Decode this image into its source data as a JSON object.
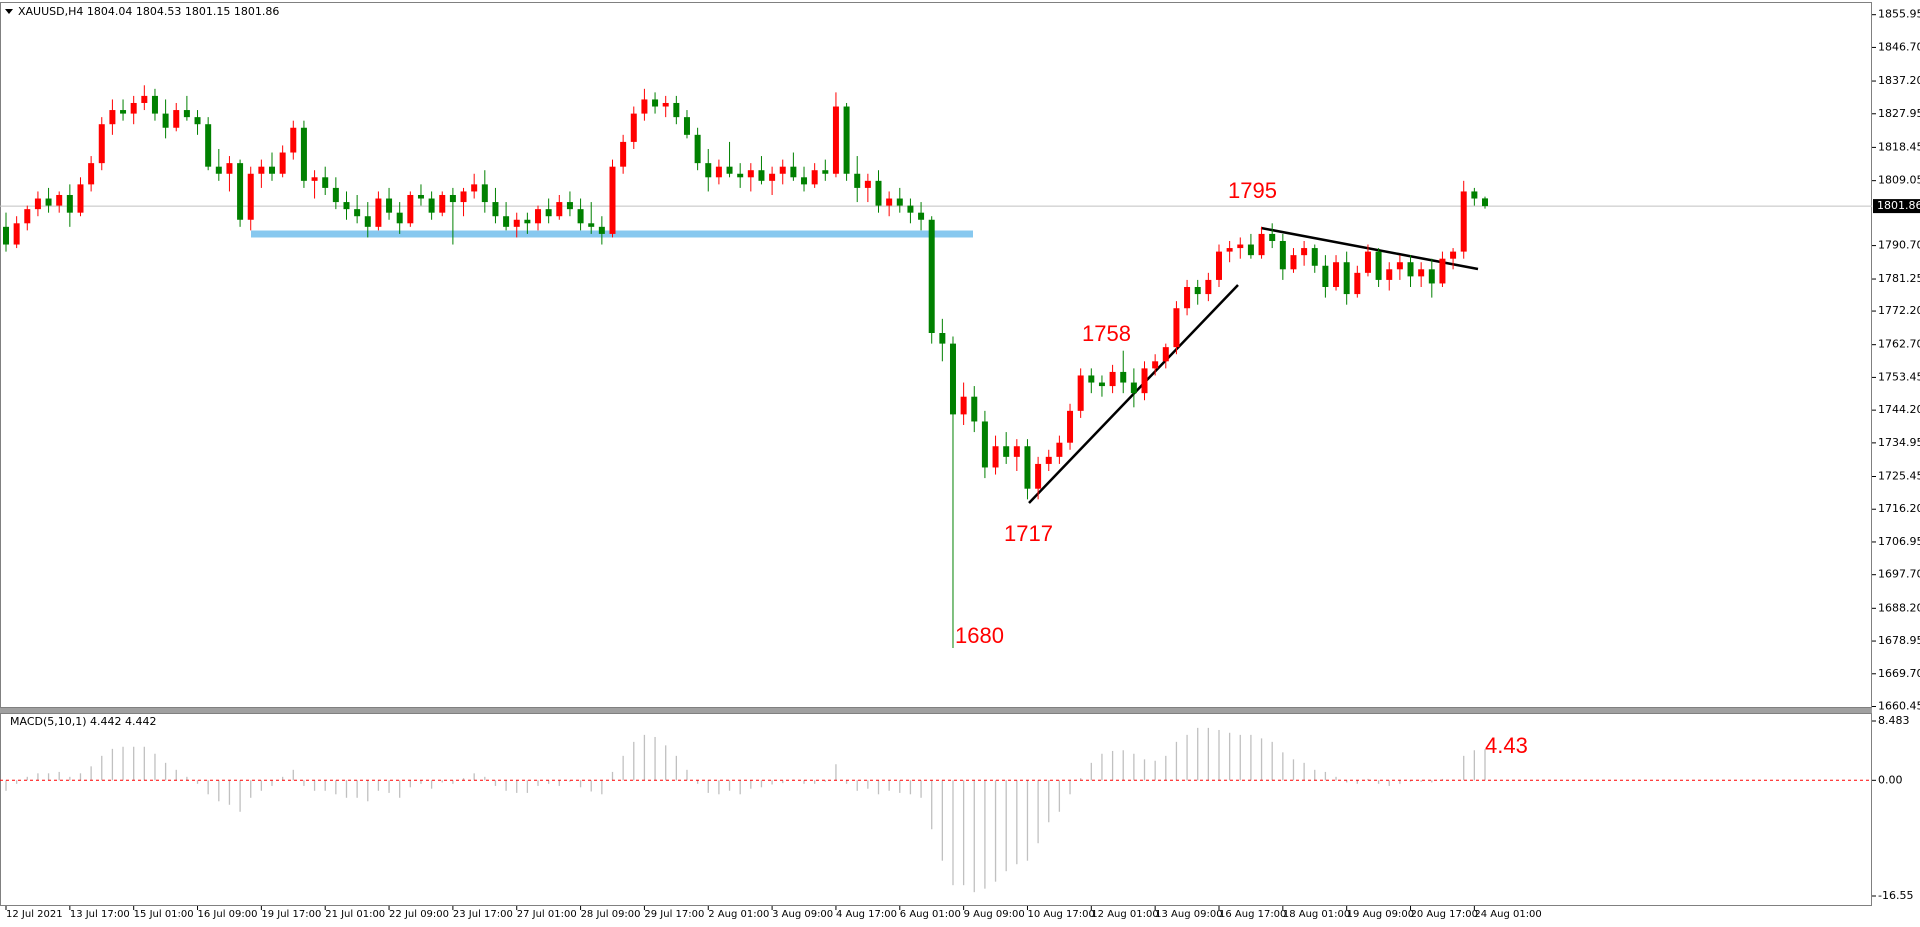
{
  "chart_data": [
    {
      "type": "candlestick",
      "title": "XAUUSD,H4  1804.04 1804.53 1801.15 1801.86",
      "bull_color": "#ff0000",
      "bear_color": "#008000",
      "ylim": [
        1660.03,
        1858.97
      ],
      "yticks": [
        {
          "value": 1855.95,
          "label": "1855.95"
        },
        {
          "value": 1846.7,
          "label": "1846.70"
        },
        {
          "value": 1837.2,
          "label": "1837.20"
        },
        {
          "value": 1827.95,
          "label": "1827.95"
        },
        {
          "value": 1818.45,
          "label": "1818.45"
        },
        {
          "value": 1809.05,
          "label": "1809.05"
        },
        {
          "value": 1790.7,
          "label": "1790.70"
        },
        {
          "value": 1781.25,
          "label": "1781.25"
        },
        {
          "value": 1772.2,
          "label": "1772.20"
        },
        {
          "value": 1762.7,
          "label": "1762.70"
        },
        {
          "value": 1753.45,
          "label": "1753.45"
        },
        {
          "value": 1744.2,
          "label": "1744.20"
        },
        {
          "value": 1734.95,
          "label": "1734.95"
        },
        {
          "value": 1725.45,
          "label": "1725.45"
        },
        {
          "value": 1716.2,
          "label": "1716.20"
        },
        {
          "value": 1706.95,
          "label": "1706.95"
        },
        {
          "value": 1697.7,
          "label": "1697.70"
        },
        {
          "value": 1688.2,
          "label": "1688.20"
        },
        {
          "value": 1678.95,
          "label": "1678.95"
        },
        {
          "value": 1669.7,
          "label": "1669.70"
        },
        {
          "value": 1660.45,
          "label": "1660.45"
        }
      ],
      "current_price": 1801.86,
      "annotations": [
        "1795",
        "1758",
        "1717",
        "1680"
      ],
      "categories": [
        "12 Jul 2021",
        null,
        null,
        null,
        null,
        null,
        "13 Jul 17:00",
        null,
        null,
        null,
        null,
        null,
        "15 Jul 01:00",
        null,
        null,
        null,
        null,
        null,
        "16 Jul 09:00",
        null,
        null,
        null,
        null,
        null,
        "19 Jul 17:00",
        null,
        null,
        null,
        null,
        null,
        "21 Jul 01:00",
        null,
        null,
        null,
        null,
        null,
        "22 Jul 09:00",
        null,
        null,
        null,
        null,
        null,
        "23 Jul 17:00",
        null,
        null,
        null,
        null,
        null,
        "27 Jul 01:00",
        null,
        null,
        null,
        null,
        null,
        "28 Jul 09:00",
        null,
        null,
        null,
        null,
        null,
        "29 Jul 17:00",
        null,
        null,
        null,
        null,
        null,
        "2 Aug 01:00",
        null,
        null,
        null,
        null,
        null,
        "3 Aug 09:00",
        null,
        null,
        null,
        null,
        null,
        "4 Aug 17:00",
        null,
        null,
        null,
        null,
        null,
        "6 Aug 01:00",
        null,
        null,
        null,
        null,
        null,
        "9 Aug 09:00",
        null,
        null,
        null,
        null,
        null,
        "10 Aug 17:00",
        null,
        null,
        null,
        null,
        null,
        "12 Aug 01:00",
        null,
        null,
        null,
        null,
        null,
        "13 Aug 09:00",
        null,
        null,
        null,
        null,
        null,
        "16 Aug 17:00",
        null,
        null,
        null,
        null,
        null,
        "18 Aug 01:00",
        null,
        null,
        null,
        null,
        null,
        "19 Aug 09:00",
        null,
        null,
        null,
        null,
        null,
        "20 Aug 17:00",
        null,
        null,
        null,
        null,
        null,
        "24 Aug 01:00",
        null
      ],
      "candles": [
        [
          1796,
          1800,
          1789,
          1791
        ],
        [
          1791,
          1799,
          1790,
          1797
        ],
        [
          1797,
          1802,
          1795,
          1801
        ],
        [
          1801,
          1806,
          1799,
          1804
        ],
        [
          1804,
          1807,
          1800,
          1802
        ],
        [
          1802,
          1806,
          1800,
          1805
        ],
        [
          1805,
          1808,
          1796,
          1800
        ],
        [
          1800,
          1810,
          1799,
          1808
        ],
        [
          1808,
          1816,
          1806,
          1814
        ],
        [
          1814,
          1827,
          1812,
          1825
        ],
        [
          1825,
          1832,
          1822,
          1829
        ],
        [
          1829,
          1832,
          1826,
          1828
        ],
        [
          1828,
          1833,
          1825,
          1831
        ],
        [
          1831,
          1836,
          1829,
          1833
        ],
        [
          1833,
          1835,
          1826,
          1828
        ],
        [
          1828,
          1832,
          1821,
          1824
        ],
        [
          1824,
          1831,
          1823,
          1829
        ],
        [
          1829,
          1833,
          1826,
          1827
        ],
        [
          1827,
          1829,
          1822,
          1825
        ],
        [
          1825,
          1827,
          1812,
          1813
        ],
        [
          1813,
          1818,
          1809,
          1811
        ],
        [
          1811,
          1816,
          1806,
          1814
        ],
        [
          1814,
          1815,
          1796,
          1798
        ],
        [
          1798,
          1813,
          1795,
          1811
        ],
        [
          1811,
          1815,
          1807,
          1813
        ],
        [
          1813,
          1817,
          1809,
          1811
        ],
        [
          1811,
          1819,
          1810,
          1817
        ],
        [
          1817,
          1826,
          1815,
          1824
        ],
        [
          1824,
          1826,
          1807,
          1809
        ],
        [
          1809,
          1812,
          1804,
          1810
        ],
        [
          1810,
          1813,
          1805,
          1807
        ],
        [
          1807,
          1810,
          1801,
          1803
        ],
        [
          1803,
          1806,
          1798,
          1801
        ],
        [
          1801,
          1805,
          1797,
          1799
        ],
        [
          1799,
          1803,
          1793,
          1796
        ],
        [
          1796,
          1806,
          1795,
          1804
        ],
        [
          1804,
          1807,
          1798,
          1800
        ],
        [
          1800,
          1803,
          1794,
          1797
        ],
        [
          1797,
          1806,
          1796,
          1805
        ],
        [
          1805,
          1808,
          1802,
          1804
        ],
        [
          1804,
          1806,
          1798,
          1800
        ],
        [
          1800,
          1806,
          1799,
          1805
        ],
        [
          1805,
          1807,
          1791,
          1803
        ],
        [
          1803,
          1807,
          1799,
          1806
        ],
        [
          1806,
          1811,
          1804,
          1808
        ],
        [
          1808,
          1812,
          1800,
          1803
        ],
        [
          1803,
          1807,
          1797,
          1799
        ],
        [
          1799,
          1803,
          1795,
          1796
        ],
        [
          1796,
          1800,
          1793,
          1798
        ],
        [
          1798,
          1800,
          1794,
          1797
        ],
        [
          1797,
          1802,
          1795,
          1801
        ],
        [
          1801,
          1804,
          1797,
          1799
        ],
        [
          1799,
          1805,
          1798,
          1803
        ],
        [
          1803,
          1806,
          1799,
          1801
        ],
        [
          1801,
          1804,
          1795,
          1797
        ],
        [
          1797,
          1803,
          1794,
          1796
        ],
        [
          1796,
          1799,
          1791,
          1794
        ],
        [
          1794,
          1815,
          1793,
          1813
        ],
        [
          1813,
          1822,
          1811,
          1820
        ],
        [
          1820,
          1830,
          1818,
          1828
        ],
        [
          1828,
          1835,
          1826,
          1832
        ],
        [
          1832,
          1834,
          1828,
          1830
        ],
        [
          1830,
          1833,
          1827,
          1831
        ],
        [
          1831,
          1833,
          1825,
          1827
        ],
        [
          1827,
          1829,
          1821,
          1822
        ],
        [
          1822,
          1824,
          1812,
          1814
        ],
        [
          1814,
          1818,
          1806,
          1810
        ],
        [
          1810,
          1815,
          1808,
          1813
        ],
        [
          1813,
          1820,
          1810,
          1811
        ],
        [
          1811,
          1814,
          1807,
          1810
        ],
        [
          1810,
          1814,
          1806,
          1812
        ],
        [
          1812,
          1816,
          1808,
          1809
        ],
        [
          1809,
          1813,
          1805,
          1811
        ],
        [
          1811,
          1815,
          1808,
          1813
        ],
        [
          1813,
          1817,
          1809,
          1810
        ],
        [
          1810,
          1813,
          1806,
          1808
        ],
        [
          1808,
          1814,
          1807,
          1812
        ],
        [
          1812,
          1815,
          1809,
          1811
        ],
        [
          1811,
          1834,
          1810,
          1830
        ],
        [
          1830,
          1831,
          1809,
          1811
        ],
        [
          1811,
          1816,
          1803,
          1807
        ],
        [
          1807,
          1811,
          1803,
          1809
        ],
        [
          1809,
          1812,
          1800,
          1802
        ],
        [
          1802,
          1806,
          1799,
          1804
        ],
        [
          1804,
          1807,
          1800,
          1802
        ],
        [
          1802,
          1804,
          1797,
          1800
        ],
        [
          1800,
          1803,
          1795,
          1798
        ],
        [
          1798,
          1799,
          1763,
          1766
        ],
        [
          1766,
          1770,
          1758,
          1763
        ],
        [
          1763,
          1765,
          1677,
          1743
        ],
        [
          1743,
          1752,
          1740,
          1748
        ],
        [
          1748,
          1751,
          1738,
          1741
        ],
        [
          1741,
          1744,
          1725,
          1728
        ],
        [
          1728,
          1737,
          1726,
          1734
        ],
        [
          1734,
          1738,
          1729,
          1731
        ],
        [
          1731,
          1736,
          1727,
          1734
        ],
        [
          1734,
          1736,
          1719,
          1722
        ],
        [
          1722,
          1731,
          1719,
          1729
        ],
        [
          1729,
          1733,
          1727,
          1731
        ],
        [
          1731,
          1737,
          1729,
          1735
        ],
        [
          1735,
          1746,
          1733,
          1744
        ],
        [
          1744,
          1756,
          1742,
          1754
        ],
        [
          1754,
          1756,
          1749,
          1752
        ],
        [
          1752,
          1754,
          1748,
          1751
        ],
        [
          1751,
          1757,
          1749,
          1755
        ],
        [
          1755,
          1761,
          1749,
          1752
        ],
        [
          1752,
          1756,
          1745,
          1749
        ],
        [
          1749,
          1758,
          1747,
          1756
        ],
        [
          1756,
          1760,
          1754,
          1758
        ],
        [
          1758,
          1763,
          1756,
          1762
        ],
        [
          1762,
          1775,
          1760,
          1773
        ],
        [
          1773,
          1781,
          1771,
          1779
        ],
        [
          1779,
          1781,
          1774,
          1777
        ],
        [
          1777,
          1783,
          1775,
          1781
        ],
        [
          1781,
          1791,
          1779,
          1789
        ],
        [
          1789,
          1792,
          1786,
          1790
        ],
        [
          1790,
          1793,
          1787,
          1791
        ],
        [
          1791,
          1794,
          1787,
          1788
        ],
        [
          1788,
          1796,
          1787,
          1794
        ],
        [
          1794,
          1797,
          1790,
          1792
        ],
        [
          1792,
          1794,
          1781,
          1784
        ],
        [
          1784,
          1790,
          1783,
          1788
        ],
        [
          1788,
          1792,
          1785,
          1790
        ],
        [
          1790,
          1791,
          1783,
          1785
        ],
        [
          1785,
          1788,
          1776,
          1779
        ],
        [
          1779,
          1788,
          1778,
          1786
        ],
        [
          1786,
          1789,
          1774,
          1777
        ],
        [
          1777,
          1785,
          1776,
          1783
        ],
        [
          1783,
          1791,
          1782,
          1789
        ],
        [
          1789,
          1790,
          1779,
          1781
        ],
        [
          1781,
          1786,
          1778,
          1784
        ],
        [
          1784,
          1788,
          1781,
          1786
        ],
        [
          1786,
          1788,
          1779,
          1782
        ],
        [
          1782,
          1786,
          1779,
          1784
        ],
        [
          1784,
          1787,
          1776,
          1780
        ],
        [
          1780,
          1789,
          1779,
          1787
        ],
        [
          1787,
          1790,
          1784,
          1789
        ],
        [
          1789,
          1809,
          1787,
          1806
        ],
        [
          1806,
          1807,
          1802,
          1804
        ],
        [
          1804.04,
          1804.53,
          1801.15,
          1801.86
        ]
      ]
    },
    {
      "type": "histogram-indicator",
      "title": "MACD(5,10,1) 4.442 4.442",
      "color": "#c0c0c0",
      "zero_color": "#ff0000",
      "annotations": [
        "4.43"
      ],
      "ylim": [
        -17.98,
        9.2
      ],
      "yticks": [
        8.483,
        {
          "value": 0,
          "label": "0.00"
        },
        -16.55
      ],
      "values": [
        -1.5,
        -0.5,
        0.5,
        1,
        1,
        1.2,
        0.5,
        1,
        2,
        3.5,
        4.5,
        4.8,
        4.8,
        4.8,
        3.8,
        2.5,
        1.5,
        0.5,
        -0.5,
        -2,
        -3,
        -3.5,
        -4.5,
        -2.5,
        -1.5,
        -0.8,
        0.5,
        1.5,
        -0.8,
        -1.5,
        -1.5,
        -2,
        -2.5,
        -2.5,
        -3,
        -1.5,
        -1.8,
        -2.5,
        -1,
        -0.5,
        -1.2,
        -0.3,
        -0.5,
        0.3,
        1,
        0.5,
        -0.8,
        -1.5,
        -1.8,
        -1.8,
        -0.8,
        -0.5,
        -0.8,
        -0.2,
        -1,
        -1.6,
        -2,
        1.2,
        3.5,
        5.5,
        6.5,
        6.2,
        5,
        3.5,
        1.5,
        -0.5,
        -1.8,
        -2,
        -1.5,
        -2,
        -1.2,
        -1,
        -0.6,
        -0.4,
        0.1,
        -0.5,
        -0.5,
        -0.2,
        2.3,
        -0.5,
        -1.5,
        -1.2,
        -2,
        -1.5,
        -1.8,
        -2,
        -2.5,
        -7,
        -11.5,
        -15,
        -15,
        -16,
        -15.5,
        -14.5,
        -13,
        -12,
        -11.5,
        -9,
        -6,
        -4.5,
        -2,
        0.3,
        2.5,
        3.8,
        4.2,
        4.3,
        3.8,
        3,
        2.8,
        3.5,
        5.5,
        6.5,
        7.5,
        7.5,
        7.2,
        6.8,
        6.5,
        6.5,
        6,
        5.5,
        4,
        3,
        2.5,
        1.5,
        1.2,
        0.5,
        -0.3,
        -0.5,
        0.2,
        -0.5,
        -0.8,
        -0.5,
        -0.2,
        -0.2,
        -0.3,
        0.2,
        0.1,
        3.5,
        4.3,
        4.442
      ]
    }
  ]
}
